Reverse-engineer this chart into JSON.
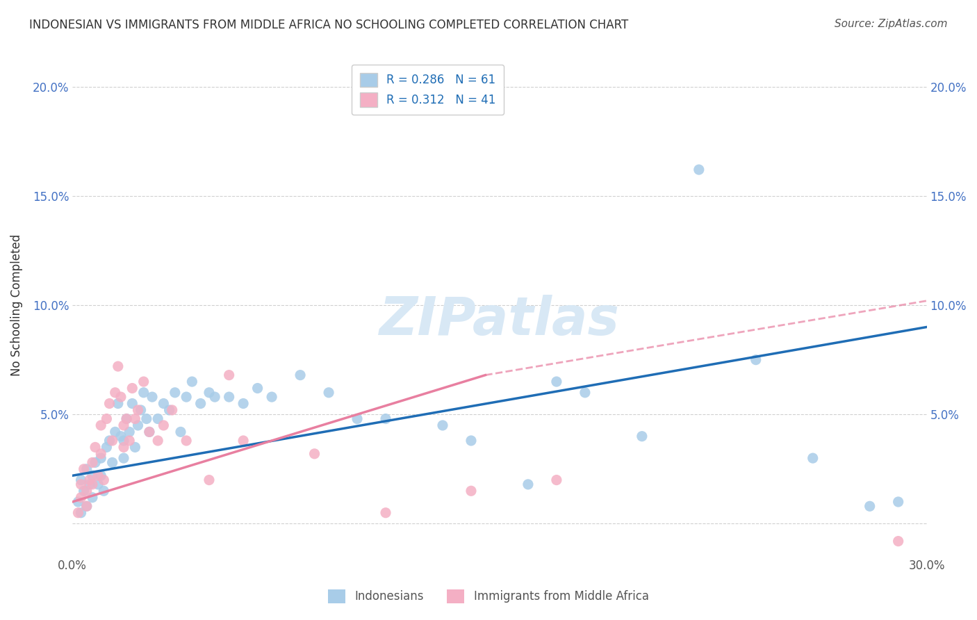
{
  "title": "INDONESIAN VS IMMIGRANTS FROM MIDDLE AFRICA NO SCHOOLING COMPLETED CORRELATION CHART",
  "source": "Source: ZipAtlas.com",
  "ylabel": "No Schooling Completed",
  "xlim": [
    0.0,
    0.3
  ],
  "ylim": [
    -0.015,
    0.215
  ],
  "x_tick_positions": [
    0.0,
    0.05,
    0.1,
    0.15,
    0.2,
    0.25,
    0.3
  ],
  "x_tick_labels": [
    "0.0%",
    "",
    "",
    "",
    "",
    "",
    "30.0%"
  ],
  "y_tick_positions": [
    0.0,
    0.05,
    0.1,
    0.15,
    0.2
  ],
  "y_tick_labels_left": [
    "",
    "5.0%",
    "10.0%",
    "15.0%",
    "20.0%"
  ],
  "y_tick_labels_right": [
    "",
    "5.0%",
    "10.0%",
    "15.0%",
    "20.0%"
  ],
  "indonesian_color": "#a8cce8",
  "immigrant_color": "#f4afc4",
  "indonesian_line_color": "#1f6db5",
  "immigrant_line_color_solid": "#e87fa0",
  "immigrant_line_color_dash": "#e87fa0",
  "background_color": "#ffffff",
  "watermark": "ZIPatlas",
  "legend_r1": "R = 0.286",
  "legend_n1": "N = 61",
  "legend_r2": "R = 0.312",
  "legend_n2": "N = 41",
  "legend_color1": "#a8cce8",
  "legend_color2": "#f4afc4",
  "indonesian_scatter": [
    [
      0.002,
      0.01
    ],
    [
      0.003,
      0.02
    ],
    [
      0.003,
      0.005
    ],
    [
      0.004,
      0.015
    ],
    [
      0.005,
      0.025
    ],
    [
      0.005,
      0.008
    ],
    [
      0.006,
      0.018
    ],
    [
      0.007,
      0.022
    ],
    [
      0.007,
      0.012
    ],
    [
      0.008,
      0.028
    ],
    [
      0.009,
      0.018
    ],
    [
      0.01,
      0.03
    ],
    [
      0.01,
      0.022
    ],
    [
      0.011,
      0.015
    ],
    [
      0.012,
      0.035
    ],
    [
      0.013,
      0.038
    ],
    [
      0.014,
      0.028
    ],
    [
      0.015,
      0.042
    ],
    [
      0.016,
      0.055
    ],
    [
      0.017,
      0.04
    ],
    [
      0.018,
      0.038
    ],
    [
      0.018,
      0.03
    ],
    [
      0.019,
      0.048
    ],
    [
      0.02,
      0.042
    ],
    [
      0.021,
      0.055
    ],
    [
      0.022,
      0.035
    ],
    [
      0.023,
      0.045
    ],
    [
      0.024,
      0.052
    ],
    [
      0.025,
      0.06
    ],
    [
      0.026,
      0.048
    ],
    [
      0.027,
      0.042
    ],
    [
      0.028,
      0.058
    ],
    [
      0.03,
      0.048
    ],
    [
      0.032,
      0.055
    ],
    [
      0.034,
      0.052
    ],
    [
      0.036,
      0.06
    ],
    [
      0.038,
      0.042
    ],
    [
      0.04,
      0.058
    ],
    [
      0.042,
      0.065
    ],
    [
      0.045,
      0.055
    ],
    [
      0.048,
      0.06
    ],
    [
      0.05,
      0.058
    ],
    [
      0.055,
      0.058
    ],
    [
      0.06,
      0.055
    ],
    [
      0.065,
      0.062
    ],
    [
      0.07,
      0.058
    ],
    [
      0.08,
      0.068
    ],
    [
      0.09,
      0.06
    ],
    [
      0.1,
      0.048
    ],
    [
      0.11,
      0.048
    ],
    [
      0.13,
      0.045
    ],
    [
      0.14,
      0.038
    ],
    [
      0.16,
      0.018
    ],
    [
      0.17,
      0.065
    ],
    [
      0.18,
      0.06
    ],
    [
      0.2,
      0.04
    ],
    [
      0.22,
      0.162
    ],
    [
      0.24,
      0.075
    ],
    [
      0.26,
      0.03
    ],
    [
      0.28,
      0.008
    ],
    [
      0.29,
      0.01
    ]
  ],
  "immigrant_scatter": [
    [
      0.002,
      0.005
    ],
    [
      0.003,
      0.012
    ],
    [
      0.003,
      0.018
    ],
    [
      0.004,
      0.025
    ],
    [
      0.005,
      0.015
    ],
    [
      0.005,
      0.008
    ],
    [
      0.006,
      0.02
    ],
    [
      0.007,
      0.028
    ],
    [
      0.007,
      0.018
    ],
    [
      0.008,
      0.035
    ],
    [
      0.009,
      0.022
    ],
    [
      0.01,
      0.045
    ],
    [
      0.01,
      0.032
    ],
    [
      0.011,
      0.02
    ],
    [
      0.012,
      0.048
    ],
    [
      0.013,
      0.055
    ],
    [
      0.014,
      0.038
    ],
    [
      0.015,
      0.06
    ],
    [
      0.016,
      0.072
    ],
    [
      0.017,
      0.058
    ],
    [
      0.018,
      0.035
    ],
    [
      0.018,
      0.045
    ],
    [
      0.019,
      0.048
    ],
    [
      0.02,
      0.038
    ],
    [
      0.021,
      0.062
    ],
    [
      0.022,
      0.048
    ],
    [
      0.023,
      0.052
    ],
    [
      0.025,
      0.065
    ],
    [
      0.027,
      0.042
    ],
    [
      0.03,
      0.038
    ],
    [
      0.032,
      0.045
    ],
    [
      0.035,
      0.052
    ],
    [
      0.04,
      0.038
    ],
    [
      0.048,
      0.02
    ],
    [
      0.055,
      0.068
    ],
    [
      0.06,
      0.038
    ],
    [
      0.085,
      0.032
    ],
    [
      0.11,
      0.005
    ],
    [
      0.14,
      0.015
    ],
    [
      0.17,
      0.02
    ],
    [
      0.29,
      -0.008
    ]
  ],
  "indonesian_line": [
    [
      0.0,
      0.022
    ],
    [
      0.3,
      0.09
    ]
  ],
  "immigrant_line_solid": [
    [
      0.0,
      0.01
    ],
    [
      0.145,
      0.068
    ]
  ],
  "immigrant_line_dashed": [
    [
      0.145,
      0.068
    ],
    [
      0.3,
      0.102
    ]
  ]
}
